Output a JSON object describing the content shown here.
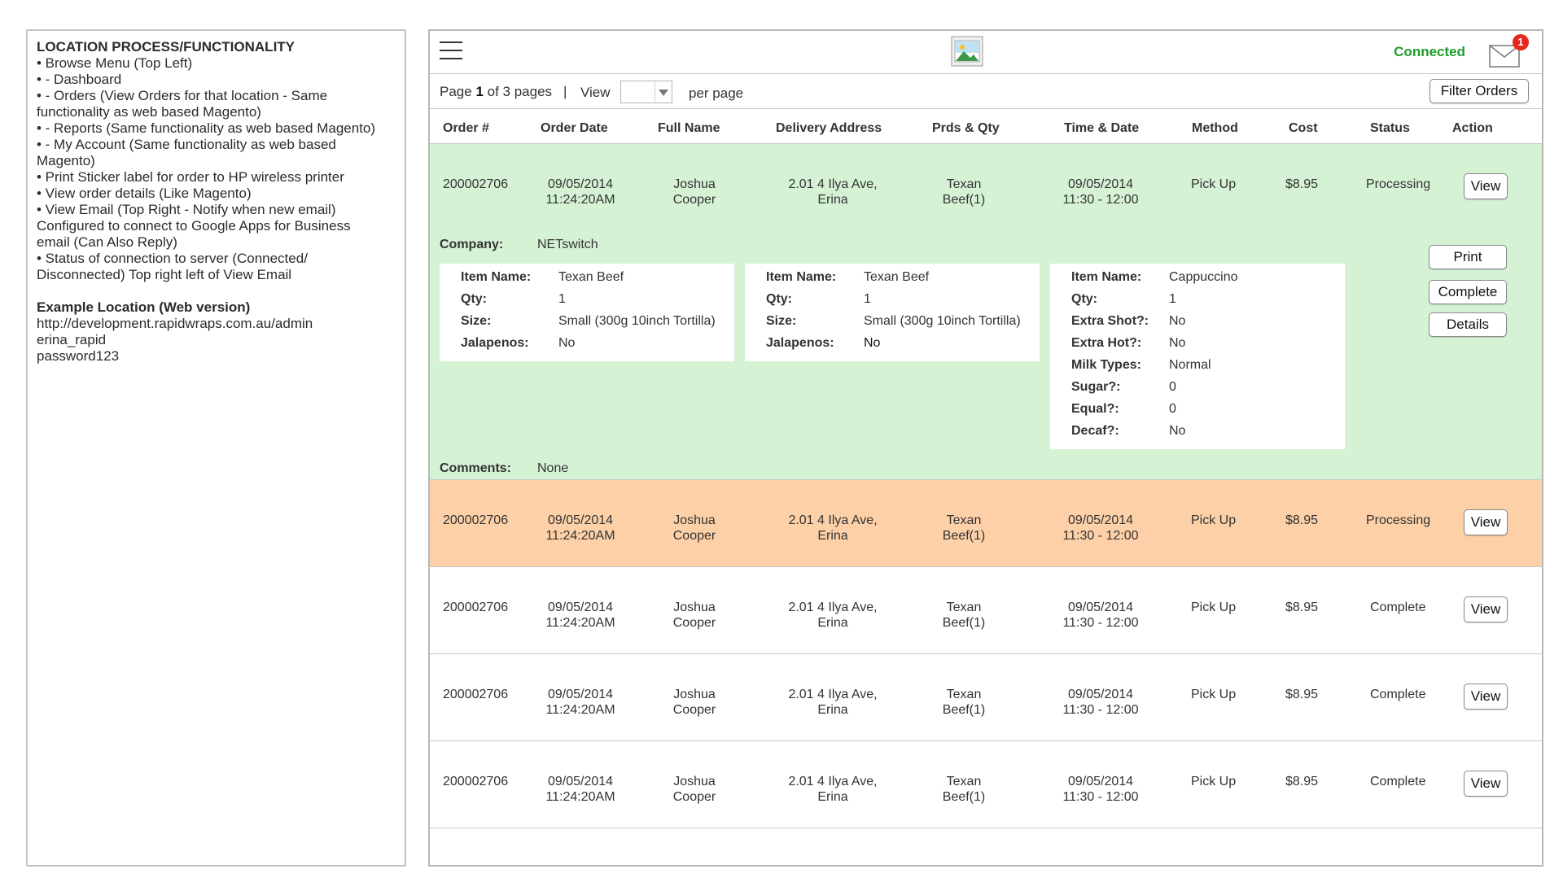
{
  "notes": {
    "title": "LOCATION PROCESS/FUNCTIONALITY",
    "lines": [
      "• Browse Menu (Top Left)",
      "• - Dashboard",
      "• - Orders (View Orders for that location - Same",
      "functionality as web based Magento)",
      "• - Reports (Same functionality as web based Magento)",
      "• - My Account (Same functionality as web based",
      "Magento)",
      "• Print Sticker label for order to HP wireless printer",
      "• View order details (Like Magento)",
      "• View Email (Top Right - Notify when new email)",
      "Configured to connect to Google Apps for Business",
      "email (Can Also Reply)",
      "• Status of connection to server (Connected/",
      "Disconnected) Top right left of View Email"
    ],
    "example_title": "Example Location (Web version)",
    "example_lines": [
      "http://development.rapidwraps.com.au/admin",
      "erina_rapid",
      "password123"
    ]
  },
  "header": {
    "status": "Connected",
    "status_color": "#1f9d2b",
    "mail_badge": "1",
    "icons": [
      "menu-icon",
      "image-placeholder-icon",
      "mail-icon"
    ]
  },
  "pagination": {
    "page_word": "Page",
    "current": "1",
    "of_text": "of 3 pages",
    "separator": "|",
    "view_label": "View",
    "per_page_label": "per page",
    "filter_button": "Filter Orders"
  },
  "table": {
    "headers": [
      "Order #",
      "Order Date",
      "Full Name",
      "Delivery Address",
      "Prds & Qty",
      "Time & Date",
      "Method",
      "Cost",
      "Status",
      "Action"
    ],
    "rows": [
      {
        "order": "200002706",
        "date1": "09/05/2014",
        "date2": "11:24:20AM",
        "name1": "Joshua",
        "name2": "Cooper",
        "addr1": "2.01 4 Ilya Ave,",
        "addr2": "Erina",
        "prd1": "Texan",
        "prd2": "Beef(1)",
        "td1": "09/05/2014",
        "td2": "11:30 - 12:00",
        "method": "Pick Up",
        "cost": "$8.95",
        "status": "Processing",
        "action": "View"
      },
      {
        "order": "200002706",
        "date1": "09/05/2014",
        "date2": "11:24:20AM",
        "name1": "Joshua",
        "name2": "Cooper",
        "addr1": "2.01 4 Ilya Ave,",
        "addr2": "Erina",
        "prd1": "Texan",
        "prd2": "Beef(1)",
        "td1": "09/05/2014",
        "td2": "11:30 - 12:00",
        "method": "Pick Up",
        "cost": "$8.95",
        "status": "Processing",
        "action": "View"
      },
      {
        "order": "200002706",
        "date1": "09/05/2014",
        "date2": "11:24:20AM",
        "name1": "Joshua",
        "name2": "Cooper",
        "addr1": "2.01 4 Ilya Ave,",
        "addr2": "Erina",
        "prd1": "Texan",
        "prd2": "Beef(1)",
        "td1": "09/05/2014",
        "td2": "11:30 - 12:00",
        "method": "Pick Up",
        "cost": "$8.95",
        "status": "Complete",
        "action": "View"
      },
      {
        "order": "200002706",
        "date1": "09/05/2014",
        "date2": "11:24:20AM",
        "name1": "Joshua",
        "name2": "Cooper",
        "addr1": "2.01 4 Ilya Ave,",
        "addr2": "Erina",
        "prd1": "Texan",
        "prd2": "Beef(1)",
        "td1": "09/05/2014",
        "td2": "11:30 - 12:00",
        "method": "Pick Up",
        "cost": "$8.95",
        "status": "Complete",
        "action": "View"
      },
      {
        "order": "200002706",
        "date1": "09/05/2014",
        "date2": "11:24:20AM",
        "name1": "Joshua",
        "name2": "Cooper",
        "addr1": "2.01 4 Ilya Ave,",
        "addr2": "Erina",
        "prd1": "Texan",
        "prd2": "Beef(1)",
        "td1": "09/05/2014",
        "td2": "11:30 - 12:00",
        "method": "Pick Up",
        "cost": "$8.95",
        "status": "Complete",
        "action": "View"
      }
    ],
    "row_colors": {
      "expanded": "#d5f2d5",
      "highlight": "#fdd0a7",
      "default": "#ffffff"
    }
  },
  "detail": {
    "company_label": "Company:",
    "company": "NETswitch",
    "items": [
      [
        [
          "Item Name:",
          "Texan Beef"
        ],
        [
          "Qty:",
          "1"
        ],
        [
          "Size:",
          "Small (300g 10inch Tortilla)"
        ],
        [
          "Jalapenos:",
          "No"
        ]
      ],
      [
        [
          "Item Name:",
          "Texan Beef"
        ],
        [
          "Qty:",
          "1"
        ],
        [
          "Size:",
          "Small (300g 10inch Tortilla)"
        ],
        [
          "Jalapenos:",
          "No"
        ]
      ],
      [
        [
          "Item Name:",
          "Cappuccino"
        ],
        [
          "Qty:",
          "1"
        ],
        [
          "Extra Shot?:",
          "No"
        ],
        [
          "Extra Hot?:",
          "No"
        ],
        [
          "Milk Types:",
          "Normal"
        ],
        [
          "Sugar?:",
          "0"
        ],
        [
          "Equal?:",
          "0"
        ],
        [
          "Decaf?:",
          "No"
        ]
      ]
    ],
    "buttons": {
      "print": "Print",
      "complete": "Complete",
      "details": "Details"
    },
    "comments_label": "Comments:",
    "comments": "None"
  }
}
